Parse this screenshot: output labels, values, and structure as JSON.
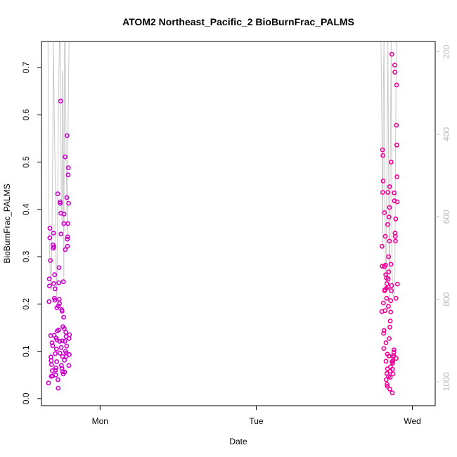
{
  "chart_data": {
    "type": "scatter",
    "title": "ATOM2 Northeast_Pacific_2 BioBurnFrac_PALMS",
    "xlabel": "Date",
    "ylabel": "BioBurnFrac_PALMS",
    "x_type": "time",
    "x_ticks": [
      {
        "label": "Mon",
        "value": "2016-08-15T00:00"
      },
      {
        "label": "Tue",
        "value": "2016-08-16T00:00"
      },
      {
        "label": "Wed",
        "value": "2016-08-17T00:00"
      }
    ],
    "xlim": [
      "2016-08-14T15:00",
      "2016-08-17T03:30"
    ],
    "ylim": [
      -0.015,
      0.755
    ],
    "y_ticks": [
      0.0,
      0.1,
      0.2,
      0.3,
      0.4,
      0.5,
      0.6,
      0.7
    ],
    "y_tick_labels": [
      "0.0",
      "0.1",
      "0.2",
      "0.3",
      "0.4",
      "0.5",
      "0.6",
      "0.7"
    ],
    "y2_axis": {
      "ylim_reversed": [
        1058,
        175
      ],
      "ticks": [
        200,
        400,
        600,
        800,
        1000
      ],
      "tick_labels": [
        "200",
        "400",
        "600",
        "800",
        "1000"
      ],
      "color": "#bbbbbb"
    },
    "grid": false,
    "colors": {
      "early_points": "#cc00cc",
      "late_points": "#ee0099",
      "pressure_line": "#c8c8c8",
      "axis": "#000000"
    },
    "series": [
      {
        "kind": "points",
        "colour_key": "early_points",
        "points": [
          [
            "2016-08-14T16:05",
            0.033
          ],
          [
            "2016-08-14T16:10",
            0.205
          ],
          [
            "2016-08-14T16:12",
            0.253
          ],
          [
            "2016-08-14T16:14",
            0.238
          ],
          [
            "2016-08-14T16:17",
            0.34
          ],
          [
            "2016-08-14T16:18",
            0.36
          ],
          [
            "2016-08-14T16:22",
            0.292
          ],
          [
            "2016-08-14T16:25",
            0.133
          ],
          [
            "2016-08-14T16:27",
            0.088
          ],
          [
            "2016-08-14T16:29",
            0.08
          ],
          [
            "2016-08-14T16:31",
            0.047
          ],
          [
            "2016-08-14T16:33",
            0.072
          ],
          [
            "2016-08-14T16:37",
            0.118
          ],
          [
            "2016-08-14T16:40",
            0.059
          ],
          [
            "2016-08-14T16:42",
            0.048
          ],
          [
            "2016-08-14T16:44",
            0.112
          ],
          [
            "2016-08-14T16:46",
            0.325
          ],
          [
            "2016-08-14T16:48",
            0.318
          ],
          [
            "2016-08-14T16:50",
            0.35
          ],
          [
            "2016-08-14T16:52",
            0.243
          ],
          [
            "2016-08-14T16:55",
            0.321
          ],
          [
            "2016-08-14T16:57",
            0.134
          ],
          [
            "2016-08-14T16:59",
            0.212
          ],
          [
            "2016-08-14T17:01",
            0.262
          ],
          [
            "2016-08-14T17:03",
            0.208
          ],
          [
            "2016-08-14T17:05",
            0.232
          ],
          [
            "2016-08-14T17:07",
            0.095
          ],
          [
            "2016-08-14T17:09",
            0.06
          ],
          [
            "2016-08-14T17:11",
            0.05
          ],
          [
            "2016-08-14T17:13",
            0.065
          ],
          [
            "2016-08-14T17:15",
            0.128
          ],
          [
            "2016-08-14T17:18",
            0.105
          ],
          [
            "2016-08-14T17:20",
            0.078
          ],
          [
            "2016-08-14T17:22",
            0.192
          ],
          [
            "2016-08-14T17:24",
            0.124
          ],
          [
            "2016-08-14T17:26",
            0.143
          ],
          [
            "2016-08-14T17:30",
            0.433
          ],
          [
            "2016-08-14T17:32",
            0.04
          ],
          [
            "2016-08-14T17:34",
            0.022
          ],
          [
            "2016-08-14T17:36",
            0.196
          ],
          [
            "2016-08-14T17:38",
            0.145
          ],
          [
            "2016-08-14T17:40",
            0.245
          ],
          [
            "2016-08-14T17:42",
            0.277
          ],
          [
            "2016-08-14T17:44",
            0.21
          ],
          [
            "2016-08-14T17:46",
            0.201
          ],
          [
            "2016-08-14T17:48",
            0.121
          ],
          [
            "2016-08-14T17:50",
            0.096
          ],
          [
            "2016-08-14T17:52",
            0.416
          ],
          [
            "2016-08-14T17:54",
            0.413
          ],
          [
            "2016-08-14T17:56",
            0.629
          ],
          [
            "2016-08-14T17:58",
            0.392
          ],
          [
            "2016-08-14T18:00",
            0.348
          ],
          [
            "2016-08-14T18:02",
            0.108
          ],
          [
            "2016-08-14T18:04",
            0.07
          ],
          [
            "2016-08-14T18:06",
            0.188
          ],
          [
            "2016-08-14T18:08",
            0.064
          ],
          [
            "2016-08-14T18:10",
            0.185
          ],
          [
            "2016-08-14T18:12",
            0.122
          ],
          [
            "2016-08-14T18:14",
            0.089
          ],
          [
            "2016-08-14T18:16",
            0.057
          ],
          [
            "2016-08-14T18:18",
            0.152
          ],
          [
            "2016-08-14T18:20",
            0.052
          ],
          [
            "2016-08-14T18:22",
            0.247
          ],
          [
            "2016-08-14T18:24",
            0.172
          ],
          [
            "2016-08-14T18:26",
            0.37
          ],
          [
            "2016-08-14T18:28",
            0.39
          ],
          [
            "2016-08-14T18:30",
            0.148
          ],
          [
            "2016-08-14T18:32",
            0.081
          ],
          [
            "2016-08-14T18:34",
            0.056
          ],
          [
            "2016-08-14T18:36",
            0.121
          ],
          [
            "2016-08-14T18:38",
            0.511
          ],
          [
            "2016-08-14T18:40",
            0.315
          ],
          [
            "2016-08-14T18:42",
            0.1
          ],
          [
            "2016-08-14T18:44",
            0.14
          ],
          [
            "2016-08-14T18:46",
            0.131
          ],
          [
            "2016-08-14T18:48",
            0.089
          ],
          [
            "2016-08-14T18:50",
            0.096
          ],
          [
            "2016-08-14T18:52",
            0.111
          ],
          [
            "2016-08-14T18:54",
            0.425
          ],
          [
            "2016-08-14T18:56",
            0.556
          ],
          [
            "2016-08-14T18:58",
            0.337
          ],
          [
            "2016-08-14T19:00",
            0.322
          ],
          [
            "2016-08-14T19:02",
            0.342
          ],
          [
            "2016-08-14T19:04",
            0.37
          ],
          [
            "2016-08-14T19:06",
            0.473
          ],
          [
            "2016-08-14T19:08",
            0.488
          ],
          [
            "2016-08-14T19:10",
            0.413
          ],
          [
            "2016-08-14T19:12",
            0.07
          ],
          [
            "2016-08-14T19:14",
            0.127
          ],
          [
            "2016-08-14T19:16",
            0.093
          ],
          [
            "2016-08-14T19:18",
            0.135
          ]
        ]
      },
      {
        "kind": "points",
        "colour_key": "late_points",
        "points": [
          [
            "2016-08-16T19:18",
            0.184
          ],
          [
            "2016-08-16T19:20",
            0.322
          ],
          [
            "2016-08-16T19:22",
            0.28
          ],
          [
            "2016-08-16T19:24",
            0.526
          ],
          [
            "2016-08-16T19:26",
            0.436
          ],
          [
            "2016-08-16T19:28",
            0.514
          ],
          [
            "2016-08-16T19:30",
            0.46
          ],
          [
            "2016-08-16T19:32",
            0.202
          ],
          [
            "2016-08-16T19:34",
            0.138
          ],
          [
            "2016-08-16T19:36",
            0.106
          ],
          [
            "2016-08-16T19:38",
            0.144
          ],
          [
            "2016-08-16T19:40",
            0.279
          ],
          [
            "2016-08-16T19:42",
            0.393
          ],
          [
            "2016-08-16T19:44",
            0.228
          ],
          [
            "2016-08-16T19:46",
            0.23
          ],
          [
            "2016-08-16T19:48",
            0.186
          ],
          [
            "2016-08-16T19:50",
            0.343
          ],
          [
            "2016-08-16T19:52",
            0.282
          ],
          [
            "2016-08-16T19:54",
            0.262
          ],
          [
            "2016-08-16T19:56",
            0.079
          ],
          [
            "2016-08-16T19:58",
            0.04
          ],
          [
            "2016-08-16T20:00",
            0.233
          ],
          [
            "2016-08-16T20:02",
            0.212
          ],
          [
            "2016-08-16T20:04",
            0.053
          ],
          [
            "2016-08-16T20:06",
            0.03
          ],
          [
            "2016-08-16T20:08",
            0.026
          ],
          [
            "2016-08-16T20:10",
            0.063
          ],
          [
            "2016-08-16T20:12",
            0.368
          ],
          [
            "2016-08-16T20:14",
            0.436
          ],
          [
            "2016-08-16T20:16",
            0.253
          ],
          [
            "2016-08-16T20:18",
            0.195
          ],
          [
            "2016-08-16T20:20",
            0.047
          ],
          [
            "2016-08-16T20:22",
            0.268
          ],
          [
            "2016-08-16T20:24",
            0.09
          ],
          [
            "2016-08-16T20:26",
            0.127
          ],
          [
            "2016-08-16T20:28",
            0.333
          ],
          [
            "2016-08-16T20:30",
            0.448
          ],
          [
            "2016-08-16T20:32",
            0.02
          ],
          [
            "2016-08-16T20:34",
            0.058
          ],
          [
            "2016-08-16T20:36",
            0.045
          ],
          [
            "2016-08-16T20:38",
            0.067
          ],
          [
            "2016-08-16T20:40",
            0.183
          ],
          [
            "2016-08-16T20:42",
            0.284
          ],
          [
            "2016-08-16T20:44",
            0.5
          ],
          [
            "2016-08-16T20:46",
            0.228
          ],
          [
            "2016-08-16T20:48",
            0.239
          ],
          [
            "2016-08-16T20:50",
            0.728
          ],
          [
            "2016-08-16T20:52",
            0.078
          ],
          [
            "2016-08-16T20:54",
            0.012
          ],
          [
            "2016-08-16T20:56",
            0.062
          ],
          [
            "2016-08-16T20:58",
            0.075
          ],
          [
            "2016-08-16T21:00",
            0.08
          ],
          [
            "2016-08-16T21:02",
            0.052
          ],
          [
            "2016-08-16T21:04",
            0.088
          ],
          [
            "2016-08-16T21:06",
            0.091
          ],
          [
            "2016-08-16T21:08",
            0.098
          ],
          [
            "2016-08-16T21:10",
            0.103
          ],
          [
            "2016-08-16T21:12",
            0.435
          ],
          [
            "2016-08-16T21:14",
            0.418
          ],
          [
            "2016-08-16T21:16",
            0.705
          ],
          [
            "2016-08-16T21:18",
            0.69
          ],
          [
            "2016-08-16T21:20",
            0.35
          ],
          [
            "2016-08-16T21:22",
            0.343
          ],
          [
            "2016-08-16T21:24",
            0.333
          ],
          [
            "2016-08-16T21:26",
            0.38
          ],
          [
            "2016-08-16T21:28",
            0.212
          ],
          [
            "2016-08-16T21:30",
            0.085
          ],
          [
            "2016-08-16T21:32",
            0.578
          ],
          [
            "2016-08-16T21:34",
            0.663
          ],
          [
            "2016-08-16T21:36",
            0.536
          ],
          [
            "2016-08-16T21:38",
            0.469
          ],
          [
            "2016-08-16T21:40",
            0.416
          ],
          [
            "2016-08-16T21:42",
            0.242
          ],
          [
            "2016-08-16T20:00",
            0.255
          ],
          [
            "2016-08-16T20:04",
            0.243
          ],
          [
            "2016-08-16T20:16",
            0.236
          ],
          [
            "2016-08-16T20:20",
            0.3
          ],
          [
            "2016-08-16T20:24",
            0.384
          ],
          [
            "2016-08-16T20:28",
            0.404
          ],
          [
            "2016-08-16T20:32",
            0.151
          ],
          [
            "2016-08-16T20:36",
            0.164
          ],
          [
            "2016-08-16T20:40",
            0.207
          ],
          [
            "2016-08-16T19:56",
            0.118
          ],
          [
            "2016-08-16T20:10",
            0.094
          ]
        ]
      },
      {
        "kind": "line",
        "axis": "y2",
        "colour_key": "pressure_line",
        "segments": [
          [
            [
              "2016-08-14T16:00",
              175
            ],
            [
              "2016-08-14T16:08",
              600
            ],
            [
              "2016-08-14T16:18",
              720
            ],
            [
              "2016-08-14T16:30",
              780
            ],
            [
              "2016-08-14T16:42",
              500
            ],
            [
              "2016-08-14T16:50",
              175
            ],
            [
              "2016-08-14T16:58",
              360
            ],
            [
              "2016-08-14T17:08",
              520
            ],
            [
              "2016-08-14T17:16",
              760
            ],
            [
              "2016-08-14T17:22",
              800
            ],
            [
              "2016-08-14T17:30",
              540
            ],
            [
              "2016-08-14T17:38",
              300
            ],
            [
              "2016-08-14T17:46",
              175
            ],
            [
              "2016-08-14T17:54",
              175
            ],
            [
              "2016-08-14T18:02",
              540
            ],
            [
              "2016-08-14T18:10",
              620
            ],
            [
              "2016-08-14T18:14",
              245
            ],
            [
              "2016-08-14T18:18",
              260
            ],
            [
              "2016-08-14T18:26",
              760
            ],
            [
              "2016-08-14T18:32",
              180
            ],
            [
              "2016-08-14T18:40",
              175
            ],
            [
              "2016-08-14T18:48",
              470
            ],
            [
              "2016-08-14T18:58",
              650
            ],
            [
              "2016-08-14T19:06",
              350
            ],
            [
              "2016-08-14T19:14",
              175
            ]
          ],
          [
            [
              "2016-08-16T19:10",
              175
            ],
            [
              "2016-08-16T19:20",
              420
            ],
            [
              "2016-08-16T19:26",
              680
            ],
            [
              "2016-08-16T19:32",
              280
            ],
            [
              "2016-08-16T19:38",
              175
            ],
            [
              "2016-08-16T19:44",
              520
            ],
            [
              "2016-08-16T19:52",
              720
            ],
            [
              "2016-08-16T19:58",
              760
            ],
            [
              "2016-08-16T20:06",
              420
            ],
            [
              "2016-08-16T20:14",
              175
            ],
            [
              "2016-08-16T20:22",
              560
            ],
            [
              "2016-08-16T20:30",
              800
            ],
            [
              "2016-08-16T20:36",
              460
            ],
            [
              "2016-08-16T20:44",
              175
            ],
            [
              "2016-08-16T20:52",
              720
            ],
            [
              "2016-08-16T21:00",
              790
            ],
            [
              "2016-08-16T21:08",
              795
            ],
            [
              "2016-08-16T21:14",
              780
            ],
            [
              "2016-08-16T21:18",
              780
            ],
            [
              "2016-08-16T21:24",
              440
            ],
            [
              "2016-08-16T21:30",
              240
            ],
            [
              "2016-08-16T21:36",
              175
            ]
          ]
        ]
      }
    ]
  }
}
